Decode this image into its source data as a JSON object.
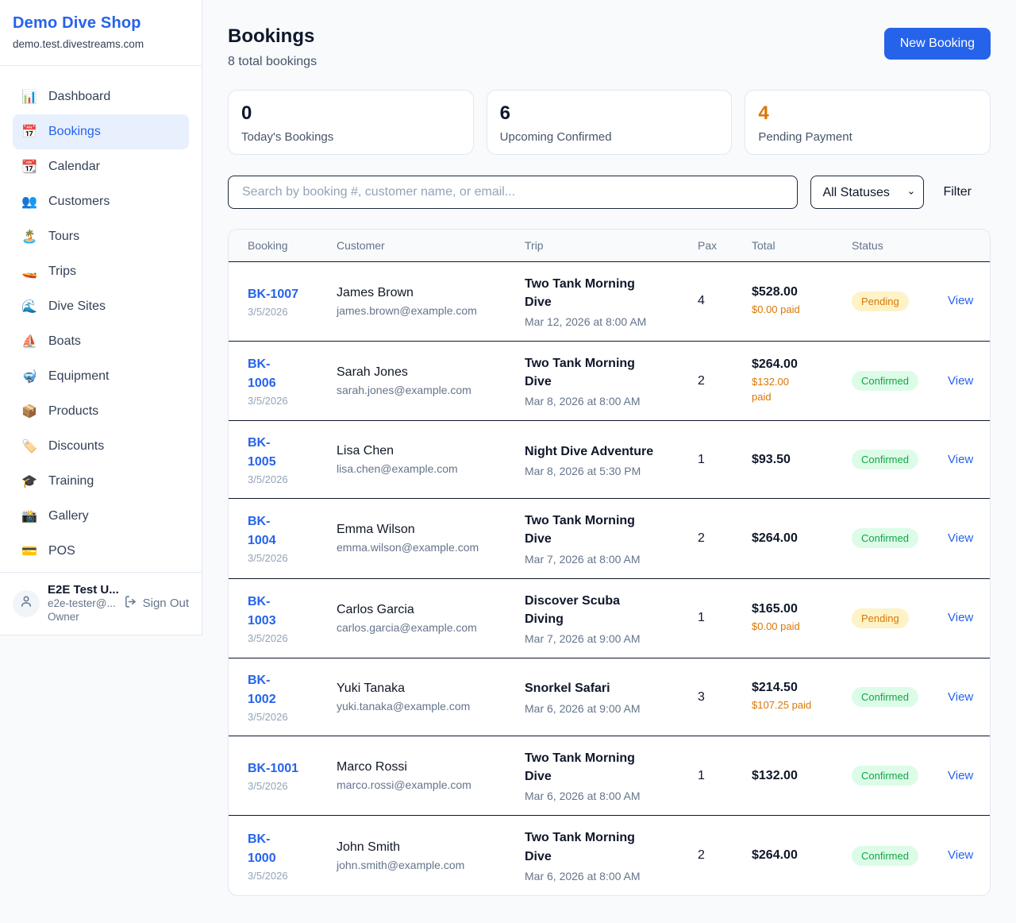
{
  "sidebar": {
    "shop_name": "Demo Dive Shop",
    "domain": "demo.test.divestreams.com",
    "items": [
      {
        "icon": "📊",
        "label": "Dashboard",
        "active": false
      },
      {
        "icon": "📅",
        "label": "Bookings",
        "active": true
      },
      {
        "icon": "📆",
        "label": "Calendar",
        "active": false
      },
      {
        "icon": "👥",
        "label": "Customers",
        "active": false
      },
      {
        "icon": "🏝️",
        "label": "Tours",
        "active": false
      },
      {
        "icon": "🚤",
        "label": "Trips",
        "active": false
      },
      {
        "icon": "🌊",
        "label": "Dive Sites",
        "active": false
      },
      {
        "icon": "⛵",
        "label": "Boats",
        "active": false
      },
      {
        "icon": "🤿",
        "label": "Equipment",
        "active": false
      },
      {
        "icon": "📦",
        "label": "Products",
        "active": false
      },
      {
        "icon": "🏷️",
        "label": "Discounts",
        "active": false
      },
      {
        "icon": "🎓",
        "label": "Training",
        "active": false
      },
      {
        "icon": "📸",
        "label": "Gallery",
        "active": false
      },
      {
        "icon": "💳",
        "label": "POS",
        "active": false
      }
    ],
    "user": {
      "name": "E2E Test U...",
      "email": "e2e-tester@...",
      "role": "Owner",
      "sign_out": "Sign Out"
    }
  },
  "header": {
    "title": "Bookings",
    "subtitle": "8 total bookings",
    "new_booking": "New Booking"
  },
  "stats": [
    {
      "value": "0",
      "label": "Today's Bookings",
      "accent": false
    },
    {
      "value": "6",
      "label": "Upcoming Confirmed",
      "accent": false
    },
    {
      "value": "4",
      "label": "Pending Payment",
      "accent": true
    }
  ],
  "filters": {
    "search_placeholder": "Search by booking #, customer name, or email...",
    "status": "All Statuses",
    "filter_label": "Filter"
  },
  "table": {
    "columns": [
      "Booking",
      "Customer",
      "Trip",
      "Pax",
      "Total",
      "Status"
    ],
    "view_label": "View",
    "rows": [
      {
        "id": "BK-1007",
        "date": "3/5/2026",
        "name": "James Brown",
        "email": "james.brown@example.com",
        "trip": "Two Tank Morning Dive",
        "when": "Mar 12, 2026 at 8:00 AM",
        "pax": "4",
        "total": "$528.00",
        "paid": "$0.00 paid",
        "status": "Pending"
      },
      {
        "id": "BK-\n1006",
        "date": "3/5/2026",
        "name": "Sarah Jones",
        "email": "sarah.jones@example.com",
        "trip": "Two Tank Morning Dive",
        "when": "Mar 8, 2026 at 8:00 AM",
        "pax": "2",
        "total": "$264.00",
        "paid": "$132.00\npaid",
        "status": "Confirmed"
      },
      {
        "id": "BK-\n1005",
        "date": "3/5/2026",
        "name": "Lisa Chen",
        "email": "lisa.chen@example.com",
        "trip": "Night Dive Adventure",
        "when": "Mar 8, 2026 at 5:30 PM",
        "pax": "1",
        "total": "$93.50",
        "paid": null,
        "status": "Confirmed"
      },
      {
        "id": "BK-\n1004",
        "date": "3/5/2026",
        "name": "Emma Wilson",
        "email": "emma.wilson@example.com",
        "trip": "Two Tank Morning Dive",
        "when": "Mar 7, 2026 at 8:00 AM",
        "pax": "2",
        "total": "$264.00",
        "paid": null,
        "status": "Confirmed"
      },
      {
        "id": "BK-\n1003",
        "date": "3/5/2026",
        "name": "Carlos Garcia",
        "email": "carlos.garcia@example.com",
        "trip": "Discover Scuba Diving",
        "when": "Mar 7, 2026 at 9:00 AM",
        "pax": "1",
        "total": "$165.00",
        "paid": "$0.00 paid",
        "status": "Pending"
      },
      {
        "id": "BK-\n1002",
        "date": "3/5/2026",
        "name": "Yuki Tanaka",
        "email": "yuki.tanaka@example.com",
        "trip": "Snorkel Safari",
        "when": "Mar 6, 2026 at 9:00 AM",
        "pax": "3",
        "total": "$214.50",
        "paid": "$107.25 paid",
        "status": "Confirmed"
      },
      {
        "id": "BK-1001",
        "date": "3/5/2026",
        "name": "Marco Rossi",
        "email": "marco.rossi@example.com",
        "trip": "Two Tank Morning Dive",
        "when": "Mar 6, 2026 at 8:00 AM",
        "pax": "1",
        "total": "$132.00",
        "paid": null,
        "status": "Confirmed"
      },
      {
        "id": "BK-\n1000",
        "date": "3/5/2026",
        "name": "John Smith",
        "email": "john.smith@example.com",
        "trip": "Two Tank Morning Dive",
        "when": "Mar 6, 2026 at 8:00 AM",
        "pax": "2",
        "total": "$264.00",
        "paid": null,
        "status": "Confirmed"
      }
    ]
  },
  "colors": {
    "accent_blue": "#2563eb",
    "pending_text": "#d97706",
    "pending_bg": "#fef3c7",
    "confirmed_text": "#16a34a",
    "confirmed_bg": "#dcfce7",
    "page_bg": "#f8fafc",
    "row_divider": "#0f172a",
    "card_border": "#e2e8f0"
  }
}
